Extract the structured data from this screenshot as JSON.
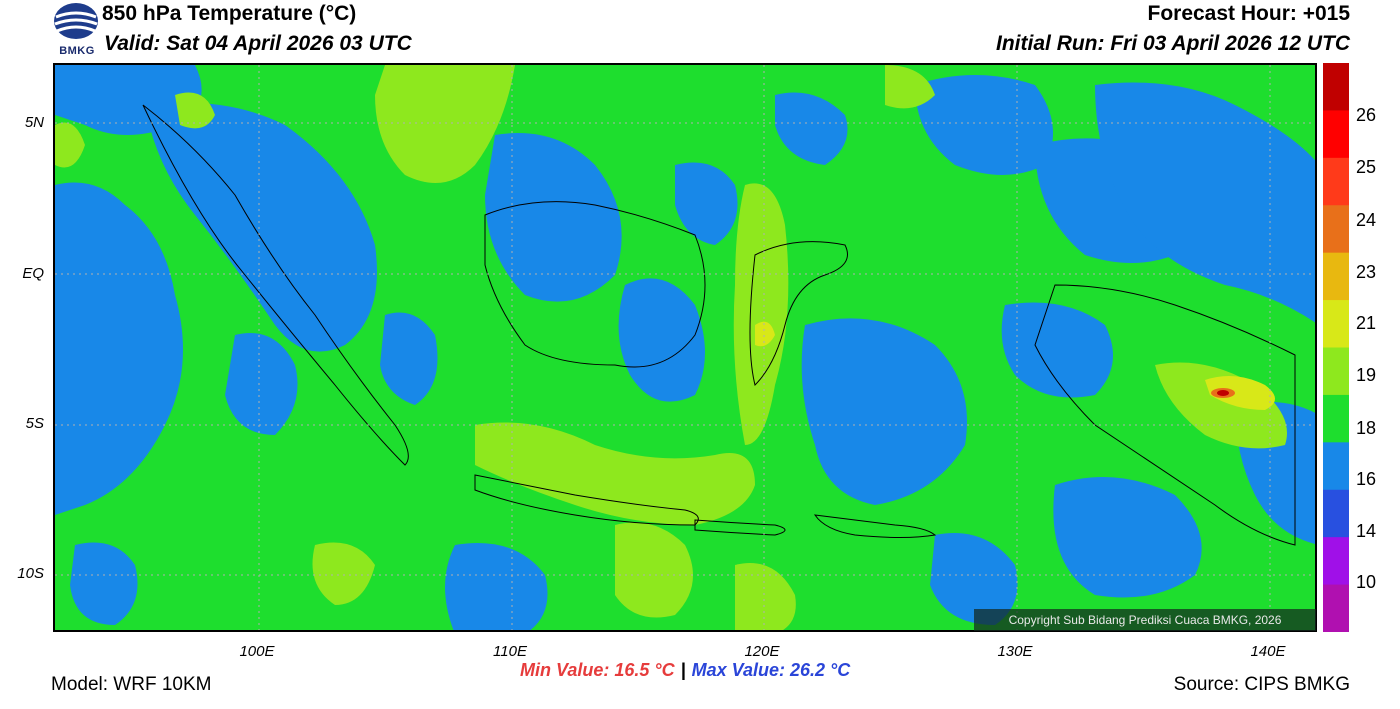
{
  "header": {
    "title": "850 hPa Temperature (°C)",
    "valid": "Valid: Sat 04 April 2026 03 UTC",
    "forecast_hour": "Forecast Hour: +015",
    "initial_run": "Initial Run: Fri 03 April 2026 12 UTC"
  },
  "logo": {
    "text": "BMKG",
    "icon": "bmkg-logo-icon"
  },
  "axes": {
    "lat_labels": [
      "5N",
      "EQ",
      "5S",
      "10S"
    ],
    "lon_labels": [
      "100E",
      "110E",
      "120E",
      "130E",
      "140E"
    ]
  },
  "colorbar": {
    "labels": [
      "26",
      "25",
      "24",
      "23",
      "21",
      "19",
      "18",
      "16",
      "14",
      "10"
    ],
    "colors": [
      "#c00000",
      "#ff0000",
      "#ff3a1a",
      "#e8701a",
      "#e8b810",
      "#d8e818",
      "#8ee81e",
      "#1ede2e",
      "#1888e8",
      "#2850e0",
      "#a010e8",
      "#b010b0"
    ]
  },
  "map": {
    "colors": {
      "ocean_green": "#1ede2e",
      "blue": "#1888e8",
      "yellowgreen": "#8ee81e",
      "yellow": "#d8e818",
      "orange": "#e8701a",
      "red": "#ff0000",
      "darkred": "#c00000"
    }
  },
  "copyright": "Copyright Sub Bidang Prediksi Cuaca BMKG, 2026",
  "footer": {
    "min_value": "Min Value: 16.5 °C",
    "separator": "|",
    "max_value": "Max Value: 26.2 °C",
    "model": "Model: WRF 10KM",
    "source": "Source: CIPS BMKG"
  }
}
